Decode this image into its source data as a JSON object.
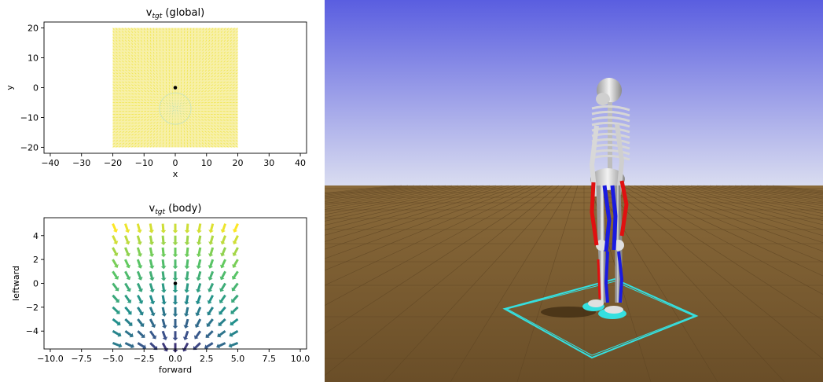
{
  "chart_data": [
    {
      "type": "quiver",
      "title": "v",
      "title_subscript": "tgt",
      "title_suffix": " (global)",
      "xlabel": "x",
      "ylabel": "y",
      "xlim": [
        -42,
        42
      ],
      "ylim": [
        -22,
        22
      ],
      "xticks": [
        -40,
        -30,
        -20,
        -10,
        0,
        10,
        20,
        30,
        40
      ],
      "yticks": [
        -20,
        -10,
        0,
        10,
        20
      ],
      "field_extent": {
        "x": [
          -20,
          20
        ],
        "y": [
          -20,
          20
        ]
      },
      "sink_center": [
        0,
        -7
      ],
      "agent_position": [
        0,
        0
      ],
      "colors": {
        "far": "#f0e442",
        "near": "#a6dbd5",
        "agent": "#000000"
      }
    },
    {
      "type": "quiver",
      "title": "v",
      "title_subscript": "tgt",
      "title_suffix": " (body)",
      "xlabel": "forward",
      "ylabel": "leftward",
      "xlim": [
        -10.5,
        10.5
      ],
      "ylim": [
        -5.5,
        5.5
      ],
      "xticks": [
        -10.0,
        -7.5,
        -5.0,
        -2.5,
        0.0,
        2.5,
        5.0,
        7.5,
        10.0
      ],
      "xtick_labels": [
        "−10.0",
        "−7.5",
        "−5.0",
        "−2.5",
        "0.0",
        "2.5",
        "5.0",
        "7.5",
        "10.0"
      ],
      "yticks": [
        -4,
        -2,
        0,
        2,
        4
      ],
      "grid_x": [
        -5,
        -4,
        -3,
        -2,
        -1,
        0,
        1,
        2,
        3,
        4,
        5
      ],
      "grid_y": [
        -5,
        -4,
        -3,
        -2,
        -1,
        0,
        1,
        2,
        3,
        4,
        5
      ],
      "target_point": [
        0,
        -7
      ],
      "agent_position": [
        0,
        0
      ],
      "colormap": [
        "#440154",
        "#3b528b",
        "#21918c",
        "#5ec962",
        "#fde725"
      ]
    }
  ],
  "simulation": {
    "sky_top": "#5a5ee0",
    "sky_bottom": "#d7dbf0",
    "ground": "#7a5a32",
    "target_outline": "#35e0e0",
    "muscle_red": "#e01010",
    "muscle_blue": "#1a1ae0"
  }
}
